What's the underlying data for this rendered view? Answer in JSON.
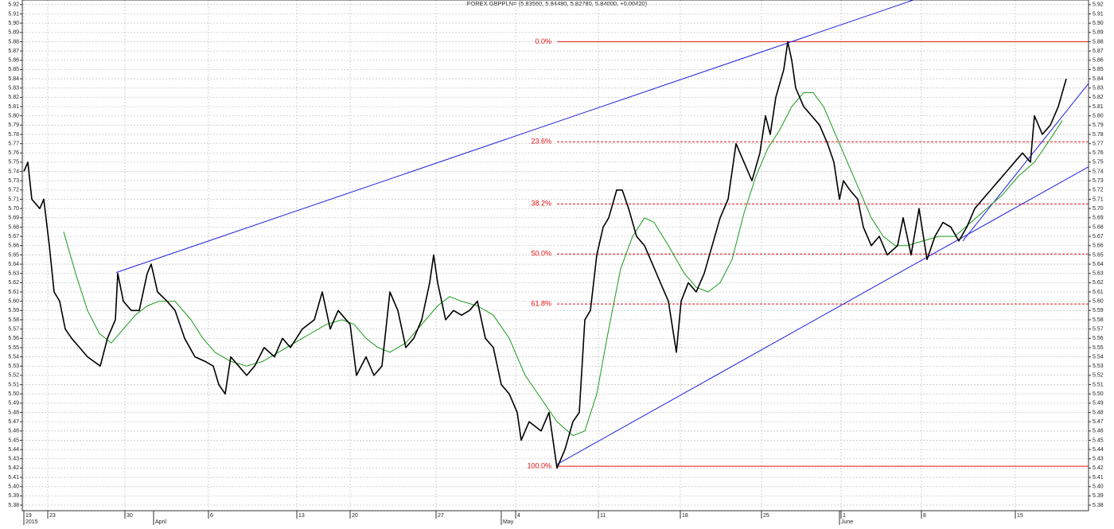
{
  "chart_data": {
    "type": "line",
    "title": "FOREX GBPPLN= (5.83560, 5.84480, 5.82780, 5.84000, +0.00420)",
    "xlim": [
      0,
      67
    ],
    "ylim": [
      5.374,
      5.925
    ],
    "grid": true,
    "xticks": [
      {
        "value": 0.1,
        "label": "19"
      },
      {
        "value": 1.6,
        "label": "23"
      },
      {
        "value": 6.45,
        "label": "30"
      },
      {
        "value": 11.7,
        "label": "6"
      },
      {
        "value": 17.25,
        "label": "13"
      },
      {
        "value": 20.6,
        "label": "20"
      },
      {
        "value": 26,
        "label": "27"
      },
      {
        "value": 31,
        "label": "4"
      },
      {
        "value": 36.2,
        "label": "11"
      },
      {
        "value": 41.35,
        "label": "18"
      },
      {
        "value": 46.45,
        "label": "25"
      },
      {
        "value": 51.45,
        "label": "1"
      },
      {
        "value": 56.5,
        "label": "8"
      },
      {
        "value": 62.4,
        "label": "15"
      }
    ],
    "period_labels": [
      {
        "value": 0.1,
        "label": "2015"
      },
      {
        "value": 8.25,
        "label": "April"
      },
      {
        "value": 30.1,
        "label": "May"
      },
      {
        "value": 51.35,
        "label": "June"
      }
    ],
    "yticks": [
      5.38,
      5.39,
      {
        "value": 5.4,
        "label": "5.40"
      },
      5.41,
      5.42,
      5.43,
      5.44,
      5.45,
      5.46,
      5.47,
      5.48,
      5.49,
      {
        "value": 5.5,
        "label": "5.50"
      },
      5.51,
      5.52,
      5.53,
      5.54,
      5.55,
      5.56,
      5.57,
      5.58,
      5.59,
      {
        "value": 5.6,
        "label": "5.60"
      },
      5.61,
      5.62,
      5.63,
      5.64,
      5.65,
      5.66,
      5.67,
      5.68,
      5.69,
      {
        "value": 5.7,
        "label": "5.70"
      },
      5.71,
      5.72,
      5.73,
      5.74,
      5.75,
      5.76,
      5.77,
      5.78,
      5.79,
      {
        "value": 5.8,
        "label": "5.80"
      },
      5.81,
      5.82,
      5.83,
      5.84,
      5.85,
      5.86,
      5.87,
      5.88,
      5.89,
      {
        "value": 5.9,
        "label": "5.90"
      },
      5.91,
      5.92
    ],
    "series": [
      {
        "color": "#000000",
        "x": [
          0.1,
          0.35,
          0.6,
          1.1,
          1.35,
          1.7,
          2,
          2.35,
          2.7,
          3.1,
          3.6,
          4.1,
          4.5,
          4.9,
          5.35,
          5.85,
          6,
          6.35,
          6.85,
          7.35,
          7.85,
          8.1,
          8.5,
          9.1,
          9.6,
          10.2,
          10.85,
          11.5,
          12,
          12.35,
          12.75,
          13.1,
          13.6,
          14.1,
          14.6,
          15.2,
          15.85,
          16.35,
          16.85,
          17.6,
          18.35,
          18.85,
          19.35,
          19.85,
          20.6,
          21,
          21.6,
          22.1,
          22.6,
          23.1,
          23.6,
          24.1,
          24.6,
          25.1,
          25.6,
          25.85,
          26.1,
          26.6,
          27.1,
          27.6,
          28.1,
          28.6,
          29.1,
          29.6,
          30.1,
          30.6,
          31.1,
          31.35,
          31.85,
          32.6,
          33.1,
          33.6,
          34.1,
          34.6,
          35,
          35.35,
          35.7,
          36.1,
          36.5,
          36.85,
          37.35,
          37.7,
          38.1,
          38.6,
          39.1,
          39.6,
          40.1,
          40.6,
          41.1,
          41.4,
          41.85,
          42.35,
          42.85,
          43.35,
          43.85,
          44.35,
          44.85,
          45.35,
          45.85,
          46.35,
          46.7,
          47,
          47.35,
          47.85,
          48.1,
          48.35,
          48.6,
          49.1,
          49.6,
          50.1,
          50.6,
          51,
          51.35,
          51.6,
          52,
          52.5,
          52.85,
          53.35,
          53.85,
          54.35,
          55,
          55.35,
          55.85,
          56.35,
          56.85,
          57.35,
          57.85,
          58.35,
          58.85,
          59.35,
          59.85,
          60.35,
          60.85,
          61.35,
          61.85,
          62.35,
          62.85,
          63.35,
          63.6,
          64.1,
          64.6,
          65.1,
          65.6
        ],
        "values": [
          5.74,
          5.75,
          5.71,
          5.7,
          5.71,
          5.66,
          5.61,
          5.6,
          5.57,
          5.56,
          5.55,
          5.54,
          5.535,
          5.53,
          5.56,
          5.58,
          5.63,
          5.6,
          5.59,
          5.59,
          5.63,
          5.64,
          5.61,
          5.6,
          5.59,
          5.56,
          5.54,
          5.535,
          5.53,
          5.51,
          5.5,
          5.54,
          5.53,
          5.52,
          5.53,
          5.55,
          5.54,
          5.56,
          5.55,
          5.57,
          5.58,
          5.61,
          5.57,
          5.59,
          5.575,
          5.52,
          5.54,
          5.52,
          5.53,
          5.61,
          5.59,
          5.55,
          5.56,
          5.58,
          5.62,
          5.65,
          5.62,
          5.58,
          5.59,
          5.585,
          5.59,
          5.6,
          5.56,
          5.55,
          5.51,
          5.5,
          5.48,
          5.45,
          5.47,
          5.46,
          5.48,
          5.42,
          5.44,
          5.47,
          5.48,
          5.58,
          5.59,
          5.65,
          5.68,
          5.69,
          5.72,
          5.72,
          5.7,
          5.67,
          5.66,
          5.64,
          5.62,
          5.6,
          5.545,
          5.6,
          5.62,
          5.61,
          5.63,
          5.66,
          5.69,
          5.71,
          5.77,
          5.75,
          5.73,
          5.76,
          5.8,
          5.78,
          5.82,
          5.85,
          5.88,
          5.86,
          5.83,
          5.81,
          5.8,
          5.79,
          5.77,
          5.75,
          5.71,
          5.73,
          5.72,
          5.71,
          5.68,
          5.66,
          5.67,
          5.65,
          5.66,
          5.69,
          5.65,
          5.7,
          5.645,
          5.67,
          5.685,
          5.68,
          5.665,
          5.68,
          5.7,
          5.71,
          5.72,
          5.73,
          5.74,
          5.75,
          5.76,
          5.75,
          5.8,
          5.78,
          5.79,
          5.81,
          5.84
        ]
      },
      {
        "color": "#1a9a1a",
        "x": [
          2.6,
          3.35,
          4.1,
          4.85,
          5.6,
          6.35,
          7.1,
          7.85,
          8.6,
          9.6,
          10.6,
          11.35,
          12.1,
          13.1,
          14.1,
          15.1,
          16.1,
          17.1,
          18.1,
          19.1,
          20.1,
          20.85,
          21.6,
          22.35,
          23.1,
          24.1,
          25.1,
          26.1,
          26.85,
          27.6,
          28.6,
          29.6,
          30.6,
          31.6,
          32.6,
          33.6,
          34.6,
          35.35,
          36.1,
          36.85,
          37.6,
          38.35,
          39.1,
          39.7,
          40.6,
          41.6,
          42.35,
          43.1,
          43.85,
          44.6,
          45.35,
          46.1,
          46.85,
          47.6,
          48.35,
          49.1,
          49.7,
          50.35,
          51.1,
          51.85,
          52.6,
          53.35,
          54.1,
          54.85,
          55.6,
          56.6,
          57.6,
          58.6,
          59.6,
          60.6,
          61.6,
          62.6,
          63.6,
          64.6,
          65.35
        ],
        "values": [
          5.675,
          5.63,
          5.59,
          5.565,
          5.555,
          5.57,
          5.585,
          5.595,
          5.6,
          5.6,
          5.58,
          5.56,
          5.545,
          5.535,
          5.53,
          5.535,
          5.545,
          5.555,
          5.565,
          5.575,
          5.58,
          5.575,
          5.56,
          5.55,
          5.545,
          5.555,
          5.575,
          5.595,
          5.605,
          5.6,
          5.595,
          5.585,
          5.56,
          5.52,
          5.495,
          5.47,
          5.455,
          5.46,
          5.5,
          5.57,
          5.635,
          5.67,
          5.69,
          5.685,
          5.66,
          5.63,
          5.615,
          5.61,
          5.62,
          5.645,
          5.695,
          5.735,
          5.765,
          5.785,
          5.81,
          5.825,
          5.825,
          5.81,
          5.78,
          5.75,
          5.72,
          5.69,
          5.67,
          5.66,
          5.66,
          5.665,
          5.67,
          5.67,
          5.685,
          5.7,
          5.715,
          5.735,
          5.75,
          5.775,
          5.795
        ]
      }
    ],
    "trend_lines": [
      {
        "color": "#2020e0",
        "x": [
          5.9,
          56
        ],
        "values": [
          5.631,
          5.925
        ]
      },
      {
        "color": "#2020e0",
        "x": [
          33.6,
          67
        ],
        "values": [
          5.424,
          5.745
        ]
      },
      {
        "color": "#2020e0",
        "x": [
          59.1,
          67
        ],
        "values": [
          5.665,
          5.835
        ]
      }
    ],
    "fib_start": 33.6,
    "fib_color": "#e01010",
    "fib_levels": [
      {
        "label": "0.0%",
        "price": 5.88,
        "dashed": false
      },
      {
        "label": "23.6%",
        "price": 5.772,
        "dashed": true
      },
      {
        "label": "38.2%",
        "price": 5.705,
        "dashed": true
      },
      {
        "label": "50.0%",
        "price": 5.651,
        "dashed": true
      },
      {
        "label": "61.8%",
        "price": 5.597,
        "dashed": true
      },
      {
        "label": "100.0%",
        "price": 5.422,
        "dashed": false
      }
    ]
  }
}
